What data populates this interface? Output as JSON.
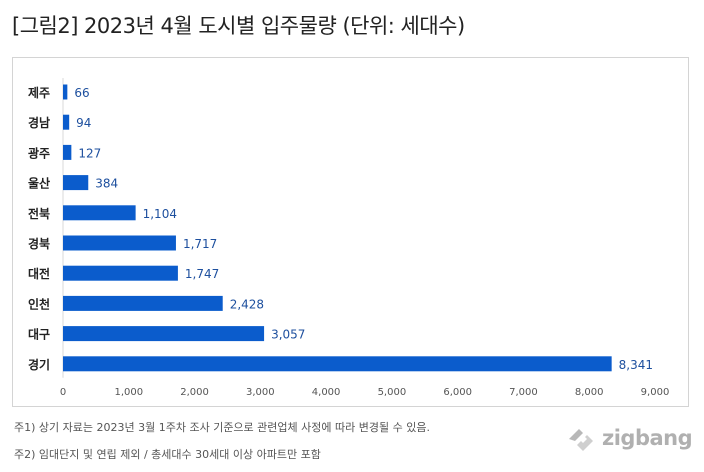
{
  "title": "[그림2] 2023년 4월 도시별 입주물량 (단위: 세대수)",
  "chart_data": {
    "type": "bar",
    "orientation": "horizontal",
    "categories": [
      "제주",
      "경남",
      "광주",
      "울산",
      "전북",
      "경북",
      "대전",
      "인천",
      "대구",
      "경기"
    ],
    "values": [
      66,
      94,
      127,
      384,
      1104,
      1717,
      1747,
      2428,
      3057,
      8341
    ],
    "value_labels": [
      "66",
      "94",
      "127",
      "384",
      "1,104",
      "1,717",
      "1,747",
      "2,428",
      "3,057",
      "8,341"
    ],
    "xlim": [
      0,
      9000
    ],
    "x_ticks": [
      "0",
      "1,000",
      "2,000",
      "3,000",
      "4,000",
      "5,000",
      "6,000",
      "7,000",
      "8,000",
      "9,000"
    ],
    "grid": false,
    "bar_color": "#0b5ccc"
  },
  "notes": [
    "주1) 상기 자료는 2023년 3월 1주차 조사 기준으로 관련업체 사정에 따라 변경될 수 있음.",
    "주2) 임대단지 및 연립 제외 / 총세대수 30세대 이상 아파트만 포함"
  ],
  "brand": {
    "name": "zigbang",
    "icon": "zigbang-logo-icon",
    "color": "#b0b0b0"
  }
}
